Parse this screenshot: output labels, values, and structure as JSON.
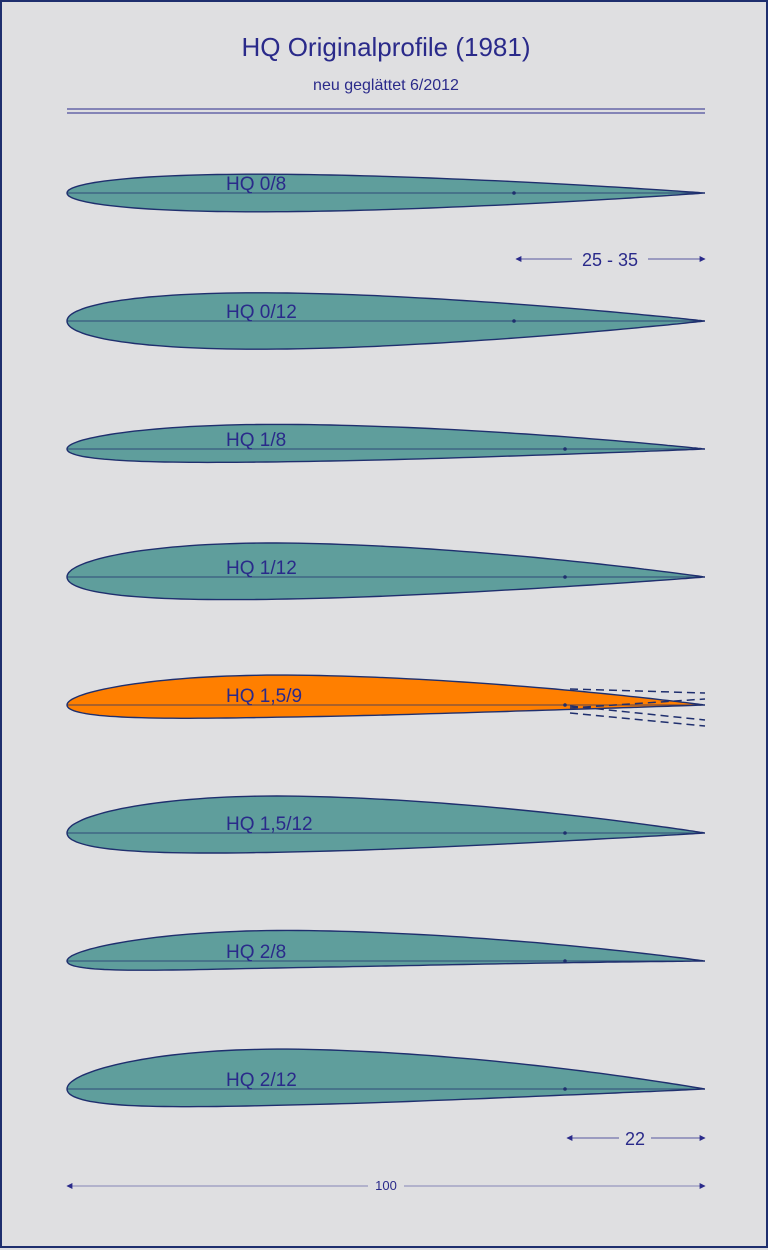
{
  "header": {
    "title": "HQ Originalprofile (1981)",
    "subtitle": "neu geglättet 6/2012"
  },
  "colors": {
    "profile_fill": "#5f9e9c",
    "highlight_fill": "#ff7f00",
    "outline": "#1f2f6e",
    "text": "#2a2a8a",
    "background": "#dfdfe1"
  },
  "profiles": [
    {
      "name": "HQ 0/8",
      "camber": 0,
      "thickness": 8,
      "highlighted": false
    },
    {
      "name": "HQ 0/12",
      "camber": 0,
      "thickness": 12,
      "highlighted": false
    },
    {
      "name": "HQ 1/8",
      "camber": 1,
      "thickness": 8,
      "highlighted": false
    },
    {
      "name": "HQ 1/12",
      "camber": 1,
      "thickness": 12,
      "highlighted": false
    },
    {
      "name": "HQ 1,5/9",
      "camber": 1.5,
      "thickness": 9,
      "highlighted": true
    },
    {
      "name": "HQ 1,5/12",
      "camber": 1.5,
      "thickness": 12,
      "highlighted": false
    },
    {
      "name": "HQ 2/8",
      "camber": 2,
      "thickness": 8,
      "highlighted": false
    },
    {
      "name": "HQ 2/12",
      "camber": 2,
      "thickness": 12,
      "highlighted": false
    }
  ],
  "dimensions": {
    "flap_range": "25 - 35",
    "flap_depth": "22",
    "chord": "100"
  }
}
